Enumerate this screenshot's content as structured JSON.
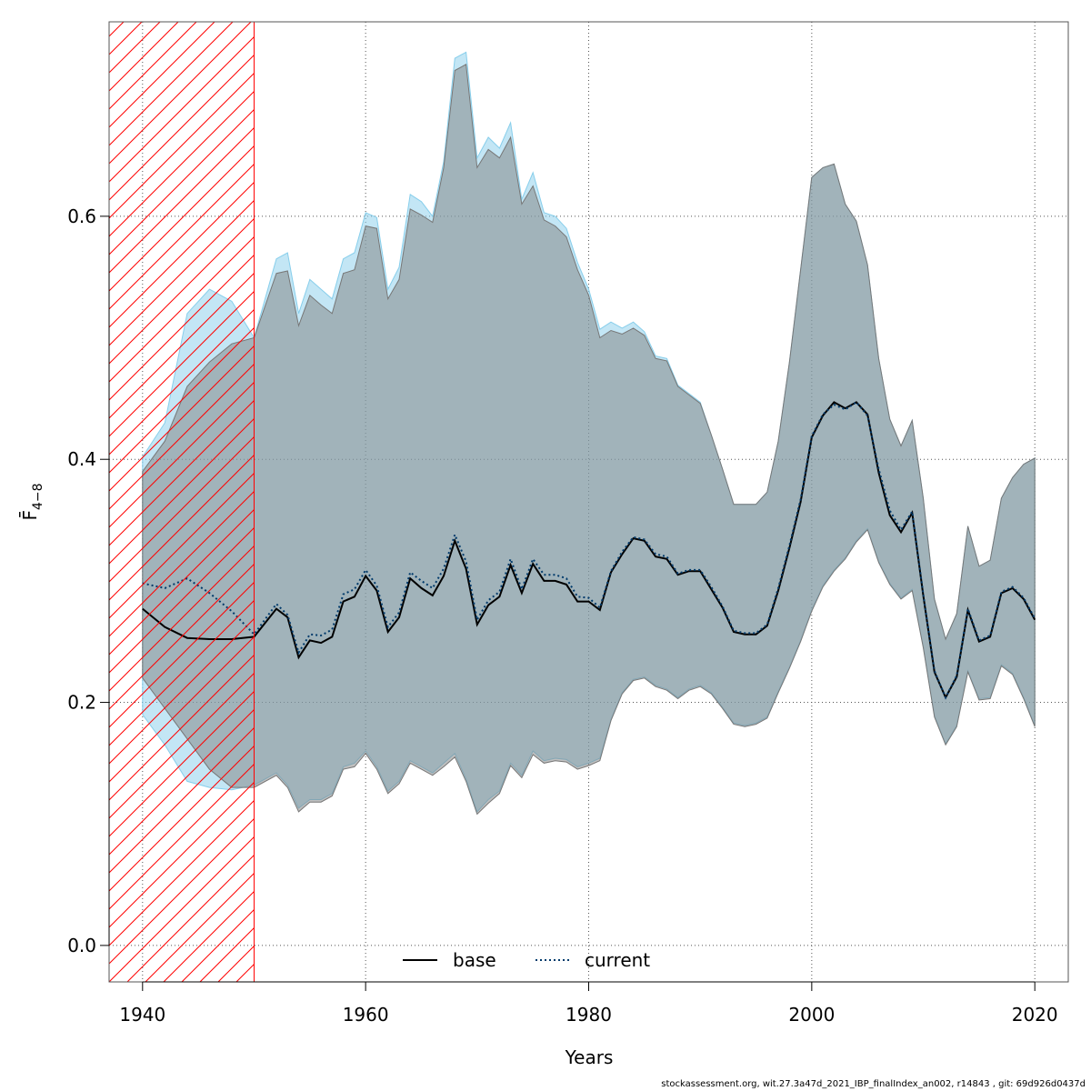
{
  "chart_data": {
    "type": "area",
    "title": "",
    "xlabel": "Years",
    "ylabel": "F̄ 4−8",
    "xlim": [
      1937,
      2023
    ],
    "ylim": [
      -0.03,
      0.76
    ],
    "x_ticks": [
      1940,
      1960,
      1980,
      2000,
      2020
    ],
    "y_ticks": [
      0.0,
      0.2,
      0.4,
      0.6
    ],
    "x_tick_labels": [
      "1940",
      "1960",
      "1980",
      "2000",
      "2020"
    ],
    "y_tick_labels": [
      "0.0",
      "0.2",
      "0.4",
      "0.6"
    ],
    "grid": true,
    "legend_position": "bottom-center",
    "hatched_region": {
      "from": 1937,
      "to": 1950
    },
    "series": [
      {
        "name": "base",
        "style": "solid",
        "color": "#000000",
        "band_color": "#808080",
        "x": [
          1940,
          1942,
          1944,
          1946,
          1948,
          1950,
          1952,
          1953,
          1954,
          1955,
          1956,
          1957,
          1958,
          1959,
          1960,
          1961,
          1962,
          1963,
          1964,
          1965,
          1966,
          1967,
          1968,
          1969,
          1970,
          1971,
          1972,
          1973,
          1974,
          1975,
          1976,
          1977,
          1978,
          1979,
          1980,
          1981,
          1982,
          1983,
          1984,
          1985,
          1986,
          1987,
          1988,
          1989,
          1990,
          1991,
          1992,
          1993,
          1994,
          1995,
          1996,
          1997,
          1998,
          1999,
          2000,
          2001,
          2002,
          2003,
          2004,
          2005,
          2006,
          2007,
          2008,
          2009,
          2010,
          2011,
          2012,
          2013,
          2014,
          2015,
          2016,
          2017,
          2018,
          2019,
          2020
        ],
        "values": [
          0.277,
          0.262,
          0.253,
          0.252,
          0.252,
          0.254,
          0.277,
          0.27,
          0.237,
          0.251,
          0.249,
          0.254,
          0.283,
          0.287,
          0.304,
          0.292,
          0.258,
          0.27,
          0.302,
          0.294,
          0.288,
          0.304,
          0.333,
          0.31,
          0.264,
          0.28,
          0.287,
          0.313,
          0.29,
          0.314,
          0.3,
          0.3,
          0.297,
          0.283,
          0.283,
          0.276,
          0.307,
          0.322,
          0.335,
          0.333,
          0.32,
          0.318,
          0.305,
          0.308,
          0.308,
          0.293,
          0.278,
          0.258,
          0.256,
          0.256,
          0.263,
          0.292,
          0.327,
          0.365,
          0.418,
          0.436,
          0.447,
          0.442,
          0.447,
          0.437,
          0.389,
          0.354,
          0.34,
          0.356,
          0.288,
          0.225,
          0.204,
          0.221,
          0.276,
          0.25,
          0.254,
          0.29,
          0.294,
          0.285,
          0.268
        ],
        "lower": [
          0.22,
          0.195,
          0.17,
          0.145,
          0.13,
          0.13,
          0.14,
          0.13,
          0.11,
          0.118,
          0.118,
          0.123,
          0.145,
          0.147,
          0.158,
          0.145,
          0.125,
          0.133,
          0.15,
          0.145,
          0.14,
          0.147,
          0.155,
          0.135,
          0.108,
          0.117,
          0.125,
          0.148,
          0.138,
          0.157,
          0.15,
          0.152,
          0.151,
          0.145,
          0.148,
          0.152,
          0.185,
          0.207,
          0.218,
          0.22,
          0.213,
          0.21,
          0.203,
          0.21,
          0.213,
          0.207,
          0.195,
          0.182,
          0.18,
          0.182,
          0.187,
          0.208,
          0.228,
          0.25,
          0.275,
          0.295,
          0.308,
          0.318,
          0.332,
          0.342,
          0.315,
          0.297,
          0.285,
          0.292,
          0.245,
          0.188,
          0.165,
          0.18,
          0.225,
          0.202,
          0.203,
          0.23,
          0.223,
          0.203,
          0.18
        ],
        "upper": [
          0.39,
          0.415,
          0.46,
          0.48,
          0.495,
          0.5,
          0.553,
          0.555,
          0.51,
          0.535,
          0.527,
          0.52,
          0.553,
          0.556,
          0.592,
          0.59,
          0.532,
          0.548,
          0.606,
          0.601,
          0.595,
          0.64,
          0.72,
          0.725,
          0.64,
          0.655,
          0.648,
          0.665,
          0.61,
          0.625,
          0.597,
          0.592,
          0.583,
          0.556,
          0.535,
          0.5,
          0.506,
          0.503,
          0.508,
          0.502,
          0.483,
          0.481,
          0.46,
          0.453,
          0.446,
          0.42,
          0.392,
          0.363,
          0.363,
          0.363,
          0.373,
          0.415,
          0.48,
          0.556,
          0.632,
          0.64,
          0.643,
          0.61,
          0.596,
          0.56,
          0.483,
          0.433,
          0.411,
          0.432,
          0.368,
          0.285,
          0.252,
          0.273,
          0.345,
          0.312,
          0.317,
          0.368,
          0.385,
          0.396,
          0.401
        ]
      },
      {
        "name": "current",
        "style": "dotted",
        "color": "#003a6b",
        "band_color": "#87ceeb",
        "x": [
          1940,
          1942,
          1944,
          1946,
          1948,
          1950,
          1952,
          1953,
          1954,
          1955,
          1956,
          1957,
          1958,
          1959,
          1960,
          1961,
          1962,
          1963,
          1964,
          1965,
          1966,
          1967,
          1968,
          1969,
          1970,
          1971,
          1972,
          1973,
          1974,
          1975,
          1976,
          1977,
          1978,
          1979,
          1980,
          1981,
          1982,
          1983,
          1984,
          1985,
          1986,
          1987,
          1988,
          1989,
          1990,
          1991,
          1992,
          1993,
          1994,
          1995,
          1996,
          1997,
          1998,
          1999,
          2000,
          2001,
          2002,
          2003,
          2004,
          2005,
          2006,
          2007,
          2008,
          2009,
          2010,
          2011,
          2012,
          2013,
          2014,
          2015,
          2016,
          2017,
          2018,
          2019,
          2020
        ],
        "values": [
          0.298,
          0.294,
          0.302,
          0.29,
          0.275,
          0.256,
          0.281,
          0.272,
          0.241,
          0.256,
          0.255,
          0.26,
          0.289,
          0.293,
          0.309,
          0.296,
          0.262,
          0.274,
          0.307,
          0.3,
          0.294,
          0.31,
          0.338,
          0.316,
          0.268,
          0.284,
          0.291,
          0.318,
          0.293,
          0.318,
          0.305,
          0.305,
          0.302,
          0.287,
          0.286,
          0.278,
          0.308,
          0.324,
          0.336,
          0.334,
          0.322,
          0.32,
          0.306,
          0.309,
          0.309,
          0.295,
          0.279,
          0.259,
          0.257,
          0.257,
          0.264,
          0.294,
          0.329,
          0.367,
          0.419,
          0.437,
          0.445,
          0.441,
          0.447,
          0.436,
          0.392,
          0.358,
          0.342,
          0.357,
          0.289,
          0.226,
          0.204,
          0.222,
          0.277,
          0.251,
          0.255,
          0.291,
          0.295,
          0.286,
          0.269
        ],
        "lower": [
          0.19,
          0.165,
          0.135,
          0.13,
          0.128,
          0.132,
          0.142,
          0.132,
          0.113,
          0.12,
          0.12,
          0.125,
          0.147,
          0.15,
          0.16,
          0.147,
          0.127,
          0.135,
          0.152,
          0.147,
          0.142,
          0.15,
          0.158,
          0.137,
          0.11,
          0.12,
          0.127,
          0.15,
          0.14,
          0.16,
          0.152,
          0.154,
          0.153,
          0.147,
          0.15,
          0.154,
          0.186,
          0.208,
          0.219,
          0.221,
          0.214,
          0.211,
          0.204,
          0.211,
          0.214,
          0.208,
          0.196,
          0.183,
          0.181,
          0.183,
          0.188,
          0.209,
          0.229,
          0.251,
          0.276,
          0.296,
          0.309,
          0.319,
          0.333,
          0.343,
          0.316,
          0.298,
          0.286,
          0.293,
          0.246,
          0.189,
          0.166,
          0.181,
          0.226,
          0.203,
          0.204,
          0.231,
          0.224,
          0.204,
          0.181
        ],
        "upper": [
          0.402,
          0.43,
          0.52,
          0.54,
          0.53,
          0.5,
          0.565,
          0.57,
          0.52,
          0.548,
          0.54,
          0.532,
          0.565,
          0.57,
          0.603,
          0.599,
          0.54,
          0.558,
          0.618,
          0.612,
          0.6,
          0.645,
          0.73,
          0.735,
          0.648,
          0.665,
          0.656,
          0.677,
          0.614,
          0.636,
          0.603,
          0.6,
          0.59,
          0.562,
          0.54,
          0.507,
          0.513,
          0.508,
          0.513,
          0.505,
          0.485,
          0.483,
          0.461,
          0.454,
          0.447,
          0.42,
          0.392,
          0.363,
          0.363,
          0.363,
          0.373,
          0.415,
          0.48,
          0.556,
          0.632,
          0.64,
          0.643,
          0.61,
          0.596,
          0.56,
          0.483,
          0.433,
          0.411,
          0.432,
          0.368,
          0.285,
          0.252,
          0.273,
          0.345,
          0.312,
          0.317,
          0.368,
          0.385,
          0.396,
          0.401
        ]
      }
    ]
  },
  "legend": {
    "items": [
      "base",
      "current"
    ]
  },
  "footer": "stockassessment.org, wit.27.3a47d_2021_IBP_finalIndex_an002, r14843 , git: 69d926d0437d"
}
